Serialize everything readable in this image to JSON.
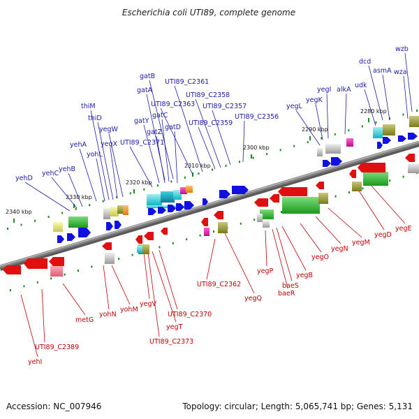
{
  "title": "Escherichia coli UTI89, complete genome",
  "footer": {
    "accession": "Accession: NC_007946",
    "summary": "Topology: circular; Length: 5,065,741 bp; Genes: 5,131"
  },
  "colors": {
    "backbone": "#808080",
    "forward_gene": "#1010e0",
    "reverse_gene": "#e01010",
    "label_forward": "#1a1aa8",
    "label_reverse": "#c00000",
    "tick": "#1a8a1a"
  },
  "ticks": [
    {
      "label": "2280 kbp"
    },
    {
      "label": "2290 kbp"
    },
    {
      "label": "2300 kbp"
    },
    {
      "label": "2310 kbp"
    },
    {
      "label": "2320 kbp"
    },
    {
      "label": "2330 kbp"
    },
    {
      "label": "2340 kbp"
    }
  ],
  "forward_labels": [
    {
      "name": "wzb"
    },
    {
      "name": "dcd"
    },
    {
      "name": "asmA"
    },
    {
      "name": "wza"
    },
    {
      "name": "udk"
    },
    {
      "name": "alkA"
    },
    {
      "name": "yegI"
    },
    {
      "name": "yegK"
    },
    {
      "name": "yegL"
    },
    {
      "name": "UTI89_C2356"
    },
    {
      "name": "UTI89_C2357"
    },
    {
      "name": "UTI89_C2358"
    },
    {
      "name": "UTI89_C2359"
    },
    {
      "name": "UTI89_C2361"
    },
    {
      "name": "UTI89_C2363"
    },
    {
      "name": "gatB"
    },
    {
      "name": "gatA"
    },
    {
      "name": "gatC"
    },
    {
      "name": "gatD"
    },
    {
      "name": "gatY"
    },
    {
      "name": "gatZ"
    },
    {
      "name": "UTI89_C2371"
    },
    {
      "name": "yegW"
    },
    {
      "name": "yegX"
    },
    {
      "name": "thiM"
    },
    {
      "name": "thiD"
    },
    {
      "name": "yohL"
    },
    {
      "name": "yehA"
    },
    {
      "name": "yehB"
    },
    {
      "name": "yehC"
    },
    {
      "name": "yehD"
    }
  ],
  "reverse_labels": [
    {
      "name": "yegE"
    },
    {
      "name": "yegD"
    },
    {
      "name": "yegM"
    },
    {
      "name": "yegN"
    },
    {
      "name": "yegO"
    },
    {
      "name": "yegB"
    },
    {
      "name": "baeS"
    },
    {
      "name": "baeR"
    },
    {
      "name": "yegP"
    },
    {
      "name": "yegQ"
    },
    {
      "name": "UTI89_C2362"
    },
    {
      "name": "UTI89_C2370"
    },
    {
      "name": "yegT"
    },
    {
      "name": "UTI89_C2373"
    },
    {
      "name": "yegV"
    },
    {
      "name": "yohM"
    },
    {
      "name": "yohN"
    },
    {
      "name": "metG"
    },
    {
      "name": "UTI89_C2389"
    },
    {
      "name": "yehI"
    }
  ]
}
